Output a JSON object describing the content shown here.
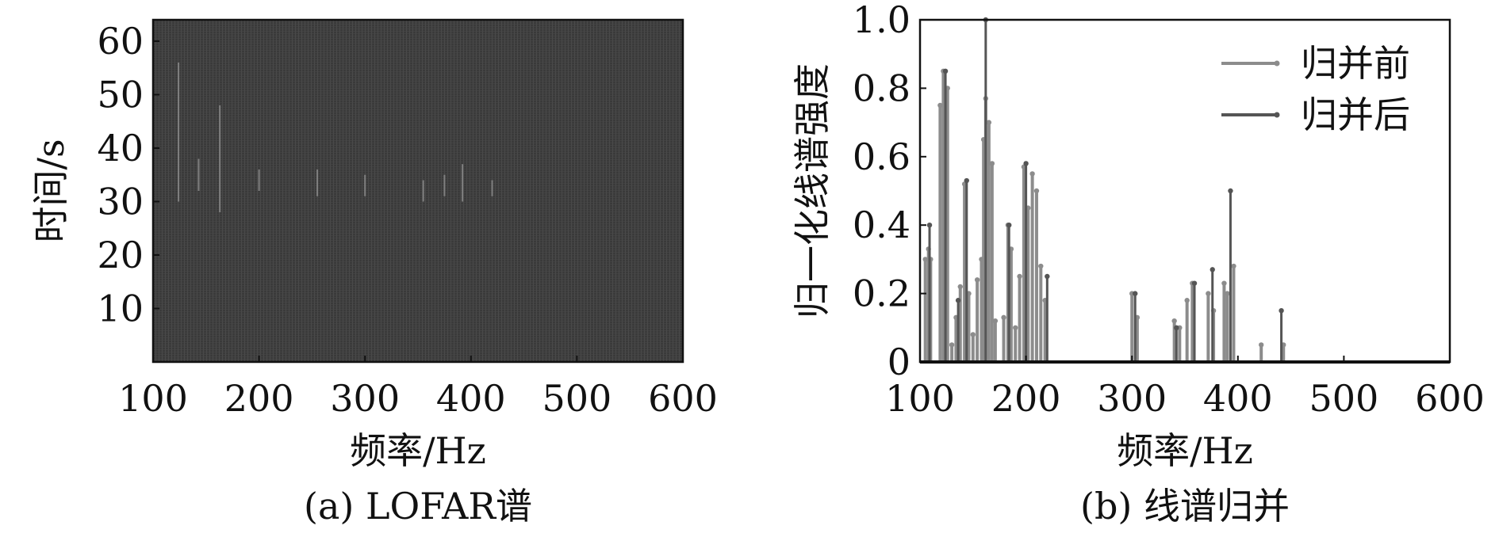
{
  "chart_data": [
    {
      "type": "heatmap",
      "caption": "(a) LOFAR谱",
      "xlabel": "频率/Hz",
      "ylabel": "时间/s",
      "xlim": [
        100,
        600
      ],
      "ylim": [
        0,
        64
      ],
      "xticks": [
        "100",
        "200",
        "300",
        "400",
        "500",
        "600"
      ],
      "yticks": [
        "10",
        "20",
        "30",
        "40",
        "50",
        "60"
      ],
      "background_color": "#3a3a3a",
      "line_color": "#8a8a8a",
      "spectral_lines": [
        {
          "freq": 124,
          "t_start": 30,
          "t_end": 56
        },
        {
          "freq": 143,
          "t_start": 32,
          "t_end": 38
        },
        {
          "freq": 163,
          "t_start": 28,
          "t_end": 48
        },
        {
          "freq": 200,
          "t_start": 32,
          "t_end": 36
        },
        {
          "freq": 255,
          "t_start": 31,
          "t_end": 36
        },
        {
          "freq": 300,
          "t_start": 31,
          "t_end": 35
        },
        {
          "freq": 355,
          "t_start": 30,
          "t_end": 34
        },
        {
          "freq": 375,
          "t_start": 31,
          "t_end": 35
        },
        {
          "freq": 392,
          "t_start": 30,
          "t_end": 37
        },
        {
          "freq": 420,
          "t_start": 31,
          "t_end": 34
        }
      ]
    },
    {
      "type": "bar",
      "caption": "(b) 线谱归并",
      "xlabel": "频率/Hz",
      "ylabel": "归一化线谱强度",
      "xlim": [
        100,
        600
      ],
      "ylim": [
        0,
        1.0
      ],
      "xticks": [
        "100",
        "200",
        "300",
        "400",
        "500",
        "600"
      ],
      "yticks": [
        "0",
        "0.2",
        "0.4",
        "0.6",
        "0.8",
        "1.0"
      ],
      "legend_position": "top-right",
      "series": [
        {
          "name": "归并前",
          "color": "#8c8c8c",
          "x": [
            105,
            108,
            110,
            119,
            122,
            126,
            130,
            134,
            138,
            142,
            146,
            150,
            154,
            158,
            160,
            162,
            165,
            168,
            171,
            179,
            183,
            186,
            190,
            194,
            198,
            202,
            206,
            210,
            214,
            218,
            300,
            305,
            340,
            345,
            352,
            357,
            372,
            377,
            387,
            390,
            396,
            422,
            443
          ],
          "y": [
            0.3,
            0.33,
            0.3,
            0.75,
            0.85,
            0.8,
            0.05,
            0.13,
            0.22,
            0.52,
            0.2,
            0.08,
            0.24,
            0.3,
            0.65,
            0.77,
            0.7,
            0.58,
            0.12,
            0.13,
            0.4,
            0.33,
            0.1,
            0.25,
            0.57,
            0.45,
            0.55,
            0.5,
            0.28,
            0.18,
            0.2,
            0.13,
            0.12,
            0.1,
            0.18,
            0.23,
            0.2,
            0.15,
            0.23,
            0.2,
            0.28,
            0.05,
            0.05
          ]
        },
        {
          "name": "归并后",
          "color": "#555555",
          "x": [
            109,
            124,
            136,
            144,
            162,
            184,
            200,
            220,
            303,
            342,
            359,
            376,
            393,
            441
          ],
          "y": [
            0.4,
            0.85,
            0.18,
            0.53,
            1.0,
            0.4,
            0.58,
            0.25,
            0.2,
            0.1,
            0.23,
            0.27,
            0.5,
            0.15
          ]
        }
      ]
    }
  ]
}
